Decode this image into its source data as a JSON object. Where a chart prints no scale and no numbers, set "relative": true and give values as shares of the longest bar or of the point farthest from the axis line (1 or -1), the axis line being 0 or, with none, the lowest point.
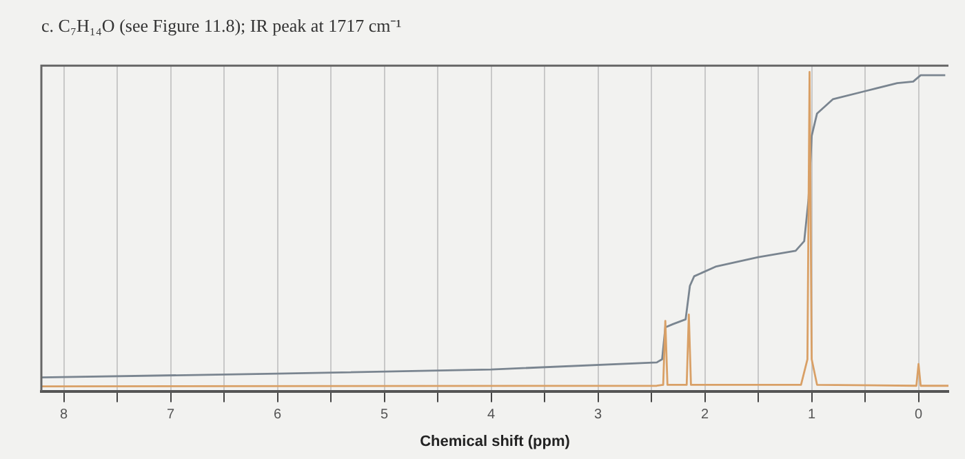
{
  "chart_data": {
    "type": "line",
    "title": "c. C₇H₁₄O (see Figure 11.8); IR peak at 1717 cm⁻¹",
    "xlabel": "Chemical shift (ppm)",
    "relative": true,
    "grid": "x",
    "marker": "none",
    "line_style": "solid",
    "xlim": [
      8.21,
      -0.28
    ],
    "xticks": [
      8,
      {
        "value": 7.5,
        "label": null
      },
      7,
      {
        "value": 6.5,
        "label": null
      },
      6,
      {
        "value": 5.5,
        "label": null
      },
      5,
      {
        "value": 4.5,
        "label": null
      },
      4,
      {
        "value": 3.5,
        "label": null
      },
      3,
      {
        "value": 2.5,
        "label": null
      },
      2,
      {
        "value": 1.5,
        "label": null
      },
      1,
      {
        "value": 0.5,
        "label": null
      },
      0
    ],
    "series": [
      {
        "color": "#d9a066",
        "x": [
          8.21,
          2.45,
          2.39,
          2.37,
          2.35,
          2.17,
          2.15,
          2.13,
          1.1,
          1.04,
          1.02,
          1.0,
          0.95,
          0.02,
          0.0,
          -0.02,
          -0.28
        ],
        "values": [
          0.015,
          0.017,
          0.02,
          0.22,
          0.02,
          0.02,
          0.24,
          0.02,
          0.02,
          0.1,
          1.0,
          0.1,
          0.02,
          0.017,
          0.085,
          0.017,
          0.017
        ]
      },
      {
        "color": "#7a8590",
        "x": [
          8.21,
          6,
          4,
          2.45,
          2.4,
          2.37,
          2.3,
          2.18,
          2.14,
          2.1,
          1.9,
          1.5,
          1.15,
          1.07,
          1.03,
          1.0,
          0.95,
          0.8,
          0.5,
          0.2,
          0.05,
          -0.02,
          -0.25
        ],
        "values": [
          0.043,
          0.055,
          0.068,
          0.09,
          0.1,
          0.2,
          0.21,
          0.225,
          0.33,
          0.36,
          0.39,
          0.42,
          0.44,
          0.47,
          0.6,
          0.8,
          0.87,
          0.915,
          0.94,
          0.965,
          0.97,
          0.99,
          0.99
        ]
      }
    ]
  }
}
